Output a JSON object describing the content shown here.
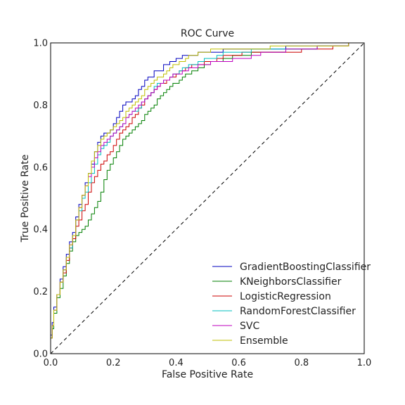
{
  "chart_data": {
    "type": "line",
    "title": "ROC Curve",
    "xlabel": "False Positive Rate",
    "ylabel": "True Positive Rate",
    "xlim": [
      0.0,
      1.0
    ],
    "ylim": [
      0.0,
      1.0
    ],
    "xticks": [
      "0.0",
      "0.2",
      "0.4",
      "0.6",
      "0.8",
      "1.0"
    ],
    "yticks": [
      "0.0",
      "0.2",
      "0.4",
      "0.6",
      "0.8",
      "1.0"
    ],
    "grid": false,
    "legend_position": "lower-right",
    "diagonal": {
      "x": [
        0,
        1
      ],
      "y": [
        0,
        1
      ],
      "style": "dashed",
      "color": "#000000"
    },
    "series": [
      {
        "name": "GradientBoostingClassifier",
        "color": "#0000bf",
        "x": [
          0,
          0.005,
          0.01,
          0.02,
          0.03,
          0.04,
          0.05,
          0.06,
          0.07,
          0.08,
          0.09,
          0.1,
          0.11,
          0.12,
          0.13,
          0.14,
          0.15,
          0.16,
          0.17,
          0.18,
          0.19,
          0.2,
          0.21,
          0.22,
          0.23,
          0.24,
          0.25,
          0.26,
          0.27,
          0.28,
          0.29,
          0.3,
          0.31,
          0.32,
          0.33,
          0.34,
          0.35,
          0.36,
          0.37,
          0.38,
          0.39,
          0.4,
          0.41,
          0.42,
          0.43,
          0.44,
          0.45,
          0.47,
          0.49,
          0.51,
          0.53,
          0.55,
          0.58,
          0.61,
          0.64,
          0.67,
          0.7,
          0.75,
          0.8,
          0.85,
          0.9,
          0.95,
          1.0
        ],
        "y": [
          0,
          0.06,
          0.1,
          0.15,
          0.19,
          0.24,
          0.28,
          0.32,
          0.36,
          0.39,
          0.44,
          0.48,
          0.51,
          0.55,
          0.58,
          0.61,
          0.65,
          0.68,
          0.7,
          0.71,
          0.71,
          0.72,
          0.74,
          0.76,
          0.78,
          0.8,
          0.81,
          0.81,
          0.82,
          0.83,
          0.85,
          0.86,
          0.88,
          0.89,
          0.89,
          0.91,
          0.91,
          0.91,
          0.93,
          0.93,
          0.94,
          0.94,
          0.95,
          0.95,
          0.96,
          0.96,
          0.96,
          0.96,
          0.97,
          0.97,
          0.97,
          0.97,
          0.98,
          0.98,
          0.98,
          0.98,
          0.98,
          0.98,
          0.99,
          0.99,
          0.99,
          0.99,
          1.0
        ]
      },
      {
        "name": "KNeighborsClassifier",
        "color": "#007f00",
        "x": [
          0,
          0.005,
          0.01,
          0.02,
          0.03,
          0.04,
          0.05,
          0.06,
          0.07,
          0.08,
          0.09,
          0.1,
          0.11,
          0.12,
          0.13,
          0.14,
          0.15,
          0.16,
          0.17,
          0.18,
          0.19,
          0.2,
          0.21,
          0.22,
          0.23,
          0.24,
          0.25,
          0.26,
          0.27,
          0.28,
          0.29,
          0.3,
          0.31,
          0.32,
          0.33,
          0.34,
          0.35,
          0.36,
          0.37,
          0.38,
          0.39,
          0.4,
          0.41,
          0.42,
          0.43,
          0.44,
          0.45,
          0.47,
          0.49,
          0.51,
          0.53,
          0.55,
          0.58,
          0.61,
          0.64,
          0.67,
          0.7,
          0.75,
          0.8,
          0.85,
          0.9,
          0.95,
          1.0
        ],
        "y": [
          0,
          0.05,
          0.08,
          0.13,
          0.18,
          0.21,
          0.25,
          0.29,
          0.33,
          0.36,
          0.38,
          0.39,
          0.4,
          0.41,
          0.43,
          0.45,
          0.47,
          0.49,
          0.52,
          0.56,
          0.59,
          0.61,
          0.63,
          0.65,
          0.67,
          0.69,
          0.7,
          0.71,
          0.72,
          0.73,
          0.74,
          0.75,
          0.77,
          0.78,
          0.79,
          0.8,
          0.82,
          0.83,
          0.84,
          0.85,
          0.86,
          0.87,
          0.87,
          0.88,
          0.89,
          0.9,
          0.9,
          0.91,
          0.92,
          0.93,
          0.94,
          0.94,
          0.95,
          0.96,
          0.96,
          0.97,
          0.97,
          0.97,
          0.98,
          0.98,
          0.99,
          0.99,
          1.0
        ]
      },
      {
        "name": "LogisticRegression",
        "color": "#cc0000",
        "x": [
          0,
          0.005,
          0.01,
          0.02,
          0.03,
          0.04,
          0.05,
          0.06,
          0.07,
          0.08,
          0.09,
          0.1,
          0.11,
          0.12,
          0.13,
          0.14,
          0.15,
          0.16,
          0.17,
          0.18,
          0.19,
          0.2,
          0.21,
          0.22,
          0.23,
          0.24,
          0.25,
          0.26,
          0.27,
          0.28,
          0.29,
          0.3,
          0.31,
          0.32,
          0.33,
          0.34,
          0.35,
          0.36,
          0.37,
          0.38,
          0.39,
          0.4,
          0.41,
          0.42,
          0.43,
          0.44,
          0.45,
          0.47,
          0.49,
          0.51,
          0.53,
          0.55,
          0.58,
          0.61,
          0.64,
          0.67,
          0.7,
          0.75,
          0.8,
          0.85,
          0.9,
          0.95,
          1.0
        ],
        "y": [
          0,
          0.05,
          0.09,
          0.14,
          0.19,
          0.23,
          0.26,
          0.3,
          0.34,
          0.37,
          0.41,
          0.43,
          0.46,
          0.48,
          0.52,
          0.55,
          0.57,
          0.59,
          0.61,
          0.62,
          0.64,
          0.65,
          0.67,
          0.69,
          0.71,
          0.72,
          0.73,
          0.74,
          0.76,
          0.77,
          0.79,
          0.8,
          0.82,
          0.83,
          0.84,
          0.85,
          0.86,
          0.87,
          0.87,
          0.88,
          0.89,
          0.89,
          0.9,
          0.91,
          0.91,
          0.92,
          0.92,
          0.93,
          0.93,
          0.94,
          0.94,
          0.95,
          0.96,
          0.96,
          0.97,
          0.97,
          0.97,
          0.97,
          0.97,
          0.98,
          0.98,
          0.99,
          1.0
        ]
      },
      {
        "name": "RandomForestClassifier",
        "color": "#00bfbf",
        "x": [
          0,
          0.005,
          0.01,
          0.02,
          0.03,
          0.04,
          0.05,
          0.06,
          0.07,
          0.08,
          0.09,
          0.1,
          0.11,
          0.12,
          0.13,
          0.14,
          0.15,
          0.16,
          0.17,
          0.18,
          0.19,
          0.2,
          0.21,
          0.22,
          0.23,
          0.24,
          0.25,
          0.26,
          0.27,
          0.28,
          0.29,
          0.3,
          0.31,
          0.32,
          0.33,
          0.34,
          0.35,
          0.36,
          0.37,
          0.38,
          0.39,
          0.4,
          0.41,
          0.42,
          0.43,
          0.44,
          0.45,
          0.47,
          0.49,
          0.51,
          0.53,
          0.55,
          0.58,
          0.61,
          0.64,
          0.67,
          0.7,
          0.75,
          0.8,
          0.85,
          0.9,
          0.95,
          1.0
        ],
        "y": [
          0,
          0.05,
          0.09,
          0.14,
          0.19,
          0.23,
          0.27,
          0.31,
          0.34,
          0.38,
          0.43,
          0.46,
          0.5,
          0.52,
          0.55,
          0.58,
          0.61,
          0.64,
          0.66,
          0.67,
          0.68,
          0.7,
          0.71,
          0.72,
          0.73,
          0.74,
          0.76,
          0.77,
          0.78,
          0.78,
          0.79,
          0.81,
          0.82,
          0.83,
          0.84,
          0.86,
          0.87,
          0.87,
          0.88,
          0.88,
          0.89,
          0.9,
          0.9,
          0.91,
          0.92,
          0.92,
          0.93,
          0.93,
          0.94,
          0.95,
          0.95,
          0.96,
          0.97,
          0.97,
          0.97,
          0.98,
          0.98,
          0.98,
          0.98,
          0.98,
          0.99,
          0.99,
          1.0
        ]
      },
      {
        "name": "SVC",
        "color": "#bf00bf",
        "x": [
          0,
          0.005,
          0.01,
          0.02,
          0.03,
          0.04,
          0.05,
          0.06,
          0.07,
          0.08,
          0.09,
          0.1,
          0.11,
          0.12,
          0.13,
          0.14,
          0.15,
          0.16,
          0.17,
          0.18,
          0.19,
          0.2,
          0.21,
          0.22,
          0.23,
          0.24,
          0.25,
          0.26,
          0.27,
          0.28,
          0.29,
          0.3,
          0.31,
          0.32,
          0.33,
          0.34,
          0.35,
          0.36,
          0.37,
          0.38,
          0.39,
          0.4,
          0.41,
          0.42,
          0.43,
          0.44,
          0.45,
          0.47,
          0.49,
          0.51,
          0.53,
          0.55,
          0.58,
          0.61,
          0.64,
          0.67,
          0.7,
          0.75,
          0.8,
          0.85,
          0.9,
          0.95,
          1.0
        ],
        "y": [
          0,
          0.05,
          0.09,
          0.14,
          0.19,
          0.23,
          0.27,
          0.31,
          0.35,
          0.38,
          0.43,
          0.47,
          0.51,
          0.54,
          0.57,
          0.6,
          0.63,
          0.65,
          0.67,
          0.68,
          0.69,
          0.7,
          0.71,
          0.72,
          0.73,
          0.74,
          0.76,
          0.77,
          0.78,
          0.79,
          0.8,
          0.81,
          0.82,
          0.83,
          0.84,
          0.85,
          0.86,
          0.87,
          0.88,
          0.88,
          0.89,
          0.9,
          0.9,
          0.9,
          0.91,
          0.91,
          0.92,
          0.92,
          0.93,
          0.93,
          0.94,
          0.94,
          0.94,
          0.95,
          0.95,
          0.96,
          0.97,
          0.97,
          0.98,
          0.98,
          0.99,
          0.99,
          1.0
        ]
      },
      {
        "name": "Ensemble",
        "color": "#bfbf00",
        "x": [
          0,
          0.005,
          0.01,
          0.02,
          0.03,
          0.04,
          0.05,
          0.06,
          0.07,
          0.08,
          0.09,
          0.1,
          0.11,
          0.12,
          0.13,
          0.14,
          0.15,
          0.16,
          0.17,
          0.18,
          0.19,
          0.2,
          0.21,
          0.22,
          0.23,
          0.24,
          0.25,
          0.26,
          0.27,
          0.28,
          0.29,
          0.3,
          0.31,
          0.32,
          0.33,
          0.34,
          0.35,
          0.36,
          0.37,
          0.38,
          0.39,
          0.4,
          0.41,
          0.42,
          0.43,
          0.44,
          0.45,
          0.47,
          0.49,
          0.51,
          0.53,
          0.55,
          0.58,
          0.61,
          0.64,
          0.67,
          0.7,
          0.75,
          0.8,
          0.85,
          0.9,
          0.95,
          1.0
        ],
        "y": [
          0,
          0.05,
          0.09,
          0.14,
          0.19,
          0.23,
          0.27,
          0.31,
          0.35,
          0.38,
          0.43,
          0.47,
          0.51,
          0.54,
          0.58,
          0.62,
          0.65,
          0.67,
          0.69,
          0.7,
          0.71,
          0.72,
          0.73,
          0.74,
          0.75,
          0.76,
          0.78,
          0.79,
          0.8,
          0.81,
          0.82,
          0.83,
          0.85,
          0.86,
          0.87,
          0.88,
          0.89,
          0.89,
          0.9,
          0.91,
          0.92,
          0.93,
          0.93,
          0.94,
          0.94,
          0.95,
          0.96,
          0.96,
          0.97,
          0.97,
          0.98,
          0.98,
          0.98,
          0.98,
          0.98,
          0.98,
          0.98,
          0.99,
          0.99,
          0.99,
          0.99,
          0.99,
          1.0
        ]
      }
    ]
  }
}
